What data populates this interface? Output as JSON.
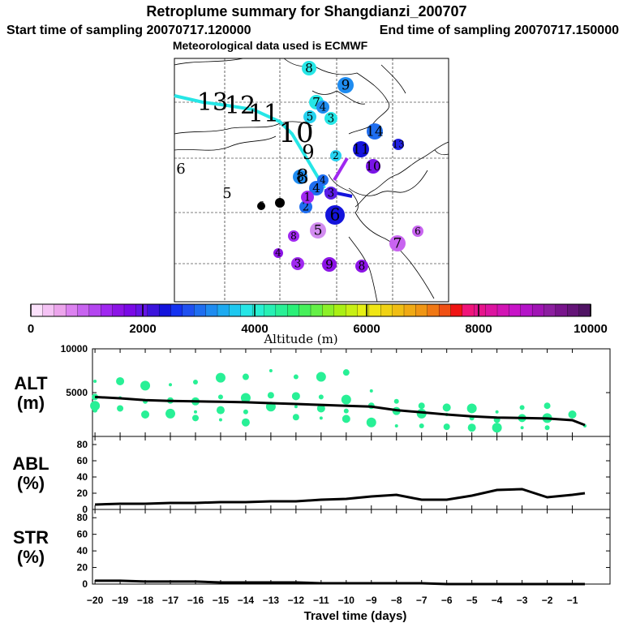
{
  "header": {
    "title": "Retroplume summary for Shangdianzi_200707",
    "start_label": "Start time of sampling 20070717.120000",
    "end_label": "End time of sampling 20070717.150000",
    "met_label": "Meteorological data used is ECMWF"
  },
  "map": {
    "track_line_color": "#26e6e6",
    "track_labels": [
      {
        "text": "13",
        "color": "#000000"
      },
      {
        "text": "12",
        "color": "#000000"
      },
      {
        "text": "11",
        "color": "#000000"
      },
      {
        "text": "10",
        "color": "#000000"
      },
      {
        "text": "9",
        "color": "#000000"
      },
      {
        "text": "8",
        "color": "#000000"
      },
      {
        "text": "5",
        "color": "#000000"
      },
      {
        "text": "6",
        "color": "#000000"
      }
    ],
    "cluster_markers": [
      {
        "label": "8",
        "color": "#26e6e6"
      },
      {
        "label": "9",
        "color": "#1f8cf0"
      },
      {
        "label": "7",
        "color": "#26e6e6"
      },
      {
        "label": "4",
        "color": "#1f8cf0"
      },
      {
        "label": "5",
        "color": "#26d2f0"
      },
      {
        "label": "3",
        "color": "#26e6e6"
      },
      {
        "label": "14",
        "color": "#1f6ef0"
      },
      {
        "label": "13",
        "color": "#2020e0"
      },
      {
        "label": "11",
        "color": "#1414dc"
      },
      {
        "label": "2",
        "color": "#26d2f0"
      },
      {
        "label": "10",
        "color": "#7a14e6"
      },
      {
        "label": "6",
        "color": "#1414dc"
      },
      {
        "label": "8",
        "color": "#1f8cf0"
      },
      {
        "label": "4",
        "color": "#1f6ef0"
      },
      {
        "label": "2",
        "color": "#1f6ef0"
      },
      {
        "label": "3",
        "color": "#5a1ee6"
      },
      {
        "label": "1",
        "color": "#a028f0"
      },
      {
        "label": "5",
        "color": "#d28cf0"
      },
      {
        "label": "7",
        "color": "#c864f0"
      },
      {
        "label": "6",
        "color": "#c864f0"
      },
      {
        "label": "4",
        "color": "#8c14e6"
      },
      {
        "label": "3",
        "color": "#a028f0"
      },
      {
        "label": "9",
        "color": "#8c14e6"
      },
      {
        "label": "8",
        "color": "#8c14e6"
      },
      {
        "label": "6",
        "color": "#000000"
      },
      {
        "label": "5",
        "color": "#000000"
      },
      {
        "label": "4",
        "color": "#1f6ef0"
      },
      {
        "label": "8",
        "color": "#a028f0"
      }
    ]
  },
  "colorbar": {
    "label": "Altitude (m)",
    "ticks": [
      "0",
      "2000",
      "4000",
      "6000",
      "8000",
      "10000"
    ],
    "colors": [
      "#fbe1fb",
      "#f5c3f5",
      "#eca5ec",
      "#dc82f0",
      "#c864f0",
      "#b446f0",
      "#a028f0",
      "#8c14e6",
      "#7a0ae6",
      "#6414e6",
      "#3c14dc",
      "#1414dc",
      "#1432f0",
      "#1f50f0",
      "#1f6ef0",
      "#1f8cf0",
      "#1eaaf0",
      "#1ec8f0",
      "#26e6e6",
      "#28f0d2",
      "#28f0b4",
      "#2af096",
      "#2af078",
      "#46f05a",
      "#64f046",
      "#8cf028",
      "#aaf014",
      "#c8f014",
      "#e6f014",
      "#f0e614",
      "#f0d214",
      "#f0be14",
      "#f0aa14",
      "#f09614",
      "#f07814",
      "#f05014",
      "#f01414",
      "#f0147a",
      "#e6148c",
      "#dc14a0",
      "#d214b4",
      "#c814c8",
      "#b414c8",
      "#a014b4",
      "#8c1ea0",
      "#78148c",
      "#641478",
      "#501464"
    ]
  },
  "chart_data": [
    {
      "type": "line+scatter",
      "panel_label": "ALT\n(m)",
      "label_line1": "ALT",
      "label_line2": "(m)",
      "xlabel": "Travel time (days)",
      "xlim": [
        -20.1,
        0.5
      ],
      "ylim": [
        0,
        10000
      ],
      "yticks": [
        5000,
        10000
      ],
      "xticks": [
        -20,
        -19,
        -18,
        -17,
        -16,
        -15,
        -14,
        -13,
        -12,
        -11,
        -10,
        -9,
        -8,
        -7,
        -6,
        -5,
        -4,
        -3,
        -2,
        -1
      ],
      "line_color": "#000000",
      "point_color": "#28f096",
      "median_line": {
        "x": [
          -20,
          -19,
          -18,
          -17,
          -16,
          -15,
          -14,
          -13,
          -12,
          -11,
          -10,
          -9,
          -8,
          -7,
          -6,
          -5,
          -4,
          -3,
          -2,
          -1,
          -0.5
        ],
        "y": [
          4500,
          4350,
          4150,
          4050,
          4000,
          3950,
          3900,
          3800,
          3700,
          3600,
          3500,
          3400,
          3000,
          2750,
          2500,
          2300,
          2150,
          2100,
          2050,
          1850,
          1300
        ]
      },
      "scatter_points": {
        "x": [
          -20,
          -20,
          -20,
          -20,
          -19,
          -19,
          -19,
          -18,
          -18,
          -18,
          -17,
          -17,
          -17,
          -16,
          -16,
          -16,
          -16,
          -15,
          -15,
          -15,
          -15,
          -14,
          -14,
          -14,
          -14,
          -13,
          -13,
          -13,
          -12,
          -12,
          -12,
          -12,
          -11,
          -11,
          -11,
          -11,
          -10,
          -10,
          -10,
          -10,
          -9,
          -9,
          -9,
          -8,
          -8,
          -8,
          -7,
          -7,
          -7,
          -6,
          -6,
          -6,
          -5,
          -5,
          -5,
          -4,
          -4,
          -4,
          -3,
          -3,
          -3,
          -2,
          -2,
          -2,
          -1,
          -0.5
        ],
        "y": [
          6300,
          4500,
          3500,
          3000,
          6300,
          4400,
          3200,
          5800,
          4000,
          2500,
          5900,
          4100,
          2600,
          6200,
          4000,
          2800,
          2100,
          6700,
          4500,
          3000,
          1900,
          6800,
          4400,
          2800,
          1600,
          7500,
          4700,
          3400,
          6800,
          4600,
          3400,
          2200,
          6800,
          4500,
          3200,
          2100,
          7300,
          4200,
          2900,
          2000,
          5200,
          3500,
          1600,
          4000,
          2900,
          1200,
          3500,
          2600,
          1200,
          3300,
          2500,
          1100,
          3200,
          2100,
          1000,
          2800,
          1900,
          1000,
          3300,
          2100,
          1000,
          3500,
          2100,
          1000,
          2500,
          1200
        ]
      }
    },
    {
      "type": "line",
      "label_line1": "ABL",
      "label_line2": "(%)",
      "ylim": [
        0,
        90
      ],
      "yticks": [
        0,
        20,
        40,
        60,
        80
      ],
      "x": [
        -20,
        -19,
        -18,
        -17,
        -16,
        -15,
        -14,
        -13,
        -12,
        -11,
        -10,
        -9,
        -8,
        -7,
        -6,
        -5,
        -4,
        -3,
        -2,
        -1,
        -0.5
      ],
      "y": [
        6,
        7,
        7,
        8,
        8,
        9,
        9,
        10,
        10,
        12,
        13,
        16,
        18,
        12,
        12,
        17,
        24,
        25,
        15,
        18,
        20
      ]
    },
    {
      "type": "line",
      "label_line1": "STR",
      "label_line2": "(%)",
      "ylim": [
        0,
        90
      ],
      "yticks": [
        0,
        20,
        40,
        60,
        80
      ],
      "x": [
        -20,
        -19,
        -18,
        -17,
        -16,
        -15,
        -14,
        -13,
        -12,
        -11,
        -10,
        -9,
        -8,
        -7,
        -6,
        -5,
        -4,
        -3,
        -2,
        -1,
        -0.5
      ],
      "y": [
        4,
        4,
        3,
        3,
        3,
        2,
        2,
        2,
        2,
        1,
        1,
        1,
        1,
        1,
        0,
        0,
        0,
        0,
        0,
        0,
        0
      ]
    }
  ]
}
